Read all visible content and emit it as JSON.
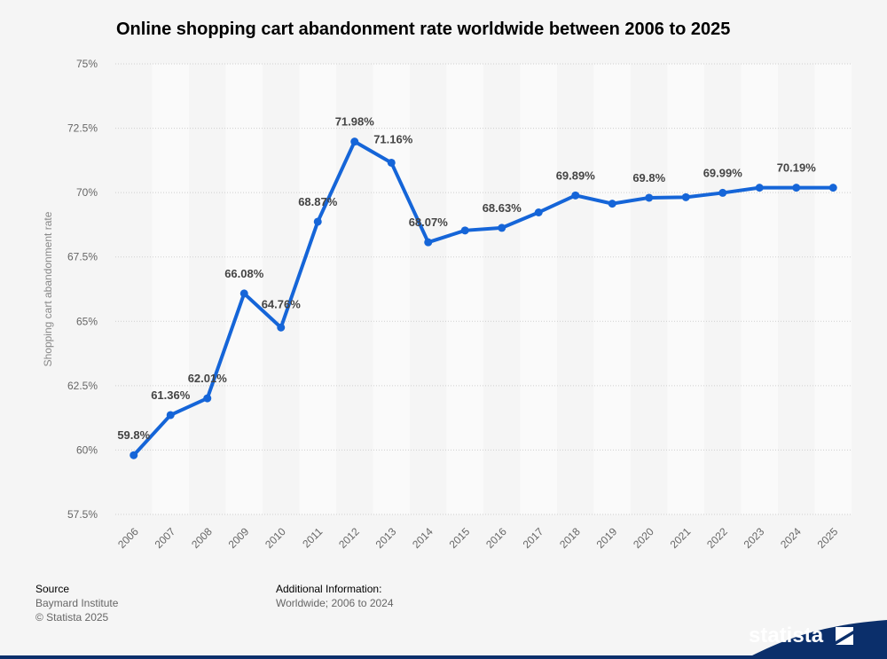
{
  "chart_data": {
    "type": "line",
    "title": "Online shopping cart abandonment rate worldwide between 2006 to 2025",
    "ylabel": "Shopping cart abandonment rate",
    "xlabel": "",
    "ylim": [
      57.5,
      75
    ],
    "y_ticks": [
      "57.5%",
      "60%",
      "62.5%",
      "65%",
      "67.5%",
      "70%",
      "72.5%",
      "75%"
    ],
    "y_tick_values": [
      57.5,
      60,
      62.5,
      65,
      67.5,
      70,
      72.5,
      75
    ],
    "categories": [
      "2006",
      "2007",
      "2008",
      "2009",
      "2010",
      "2011",
      "2012",
      "2013",
      "2014",
      "2015",
      "2016",
      "2017",
      "2018",
      "2019",
      "2020",
      "2021",
      "2022",
      "2023",
      "2024",
      "2025"
    ],
    "series": [
      {
        "values": [
          59.8,
          61.36,
          62.01,
          66.08,
          64.76,
          68.87,
          71.98,
          71.16,
          68.07,
          68.53,
          68.63,
          69.23,
          69.89,
          69.57,
          69.8,
          69.82,
          69.99,
          70.19,
          70.19,
          70.19
        ],
        "color": "#1565d8"
      }
    ],
    "data_labels": [
      {
        "index": 0,
        "text": "59.8%"
      },
      {
        "index": 1,
        "text": "61.36%"
      },
      {
        "index": 2,
        "text": "62.01%"
      },
      {
        "index": 3,
        "text": "66.08%"
      },
      {
        "index": 4,
        "text": "64.76%"
      },
      {
        "index": 5,
        "text": "68.87%"
      },
      {
        "index": 6,
        "text": "71.98%"
      },
      {
        "index": 7,
        "text": "71.16%"
      },
      {
        "index": 8,
        "text": "68.07%"
      },
      {
        "index": 10,
        "text": "68.63%"
      },
      {
        "index": 12,
        "text": "69.89%"
      },
      {
        "index": 14,
        "text": "69.8%"
      },
      {
        "index": 16,
        "text": "69.99%"
      },
      {
        "index": 18,
        "text": "70.19%"
      }
    ],
    "grid": true
  },
  "footer": {
    "source_heading": "Source",
    "source_line1": "Baymard Institute",
    "source_line2": "© Statista 2025",
    "info_heading": "Additional Information:",
    "info_line1": "Worldwide; 2006 to 2024"
  },
  "brand": {
    "name": "statista"
  }
}
